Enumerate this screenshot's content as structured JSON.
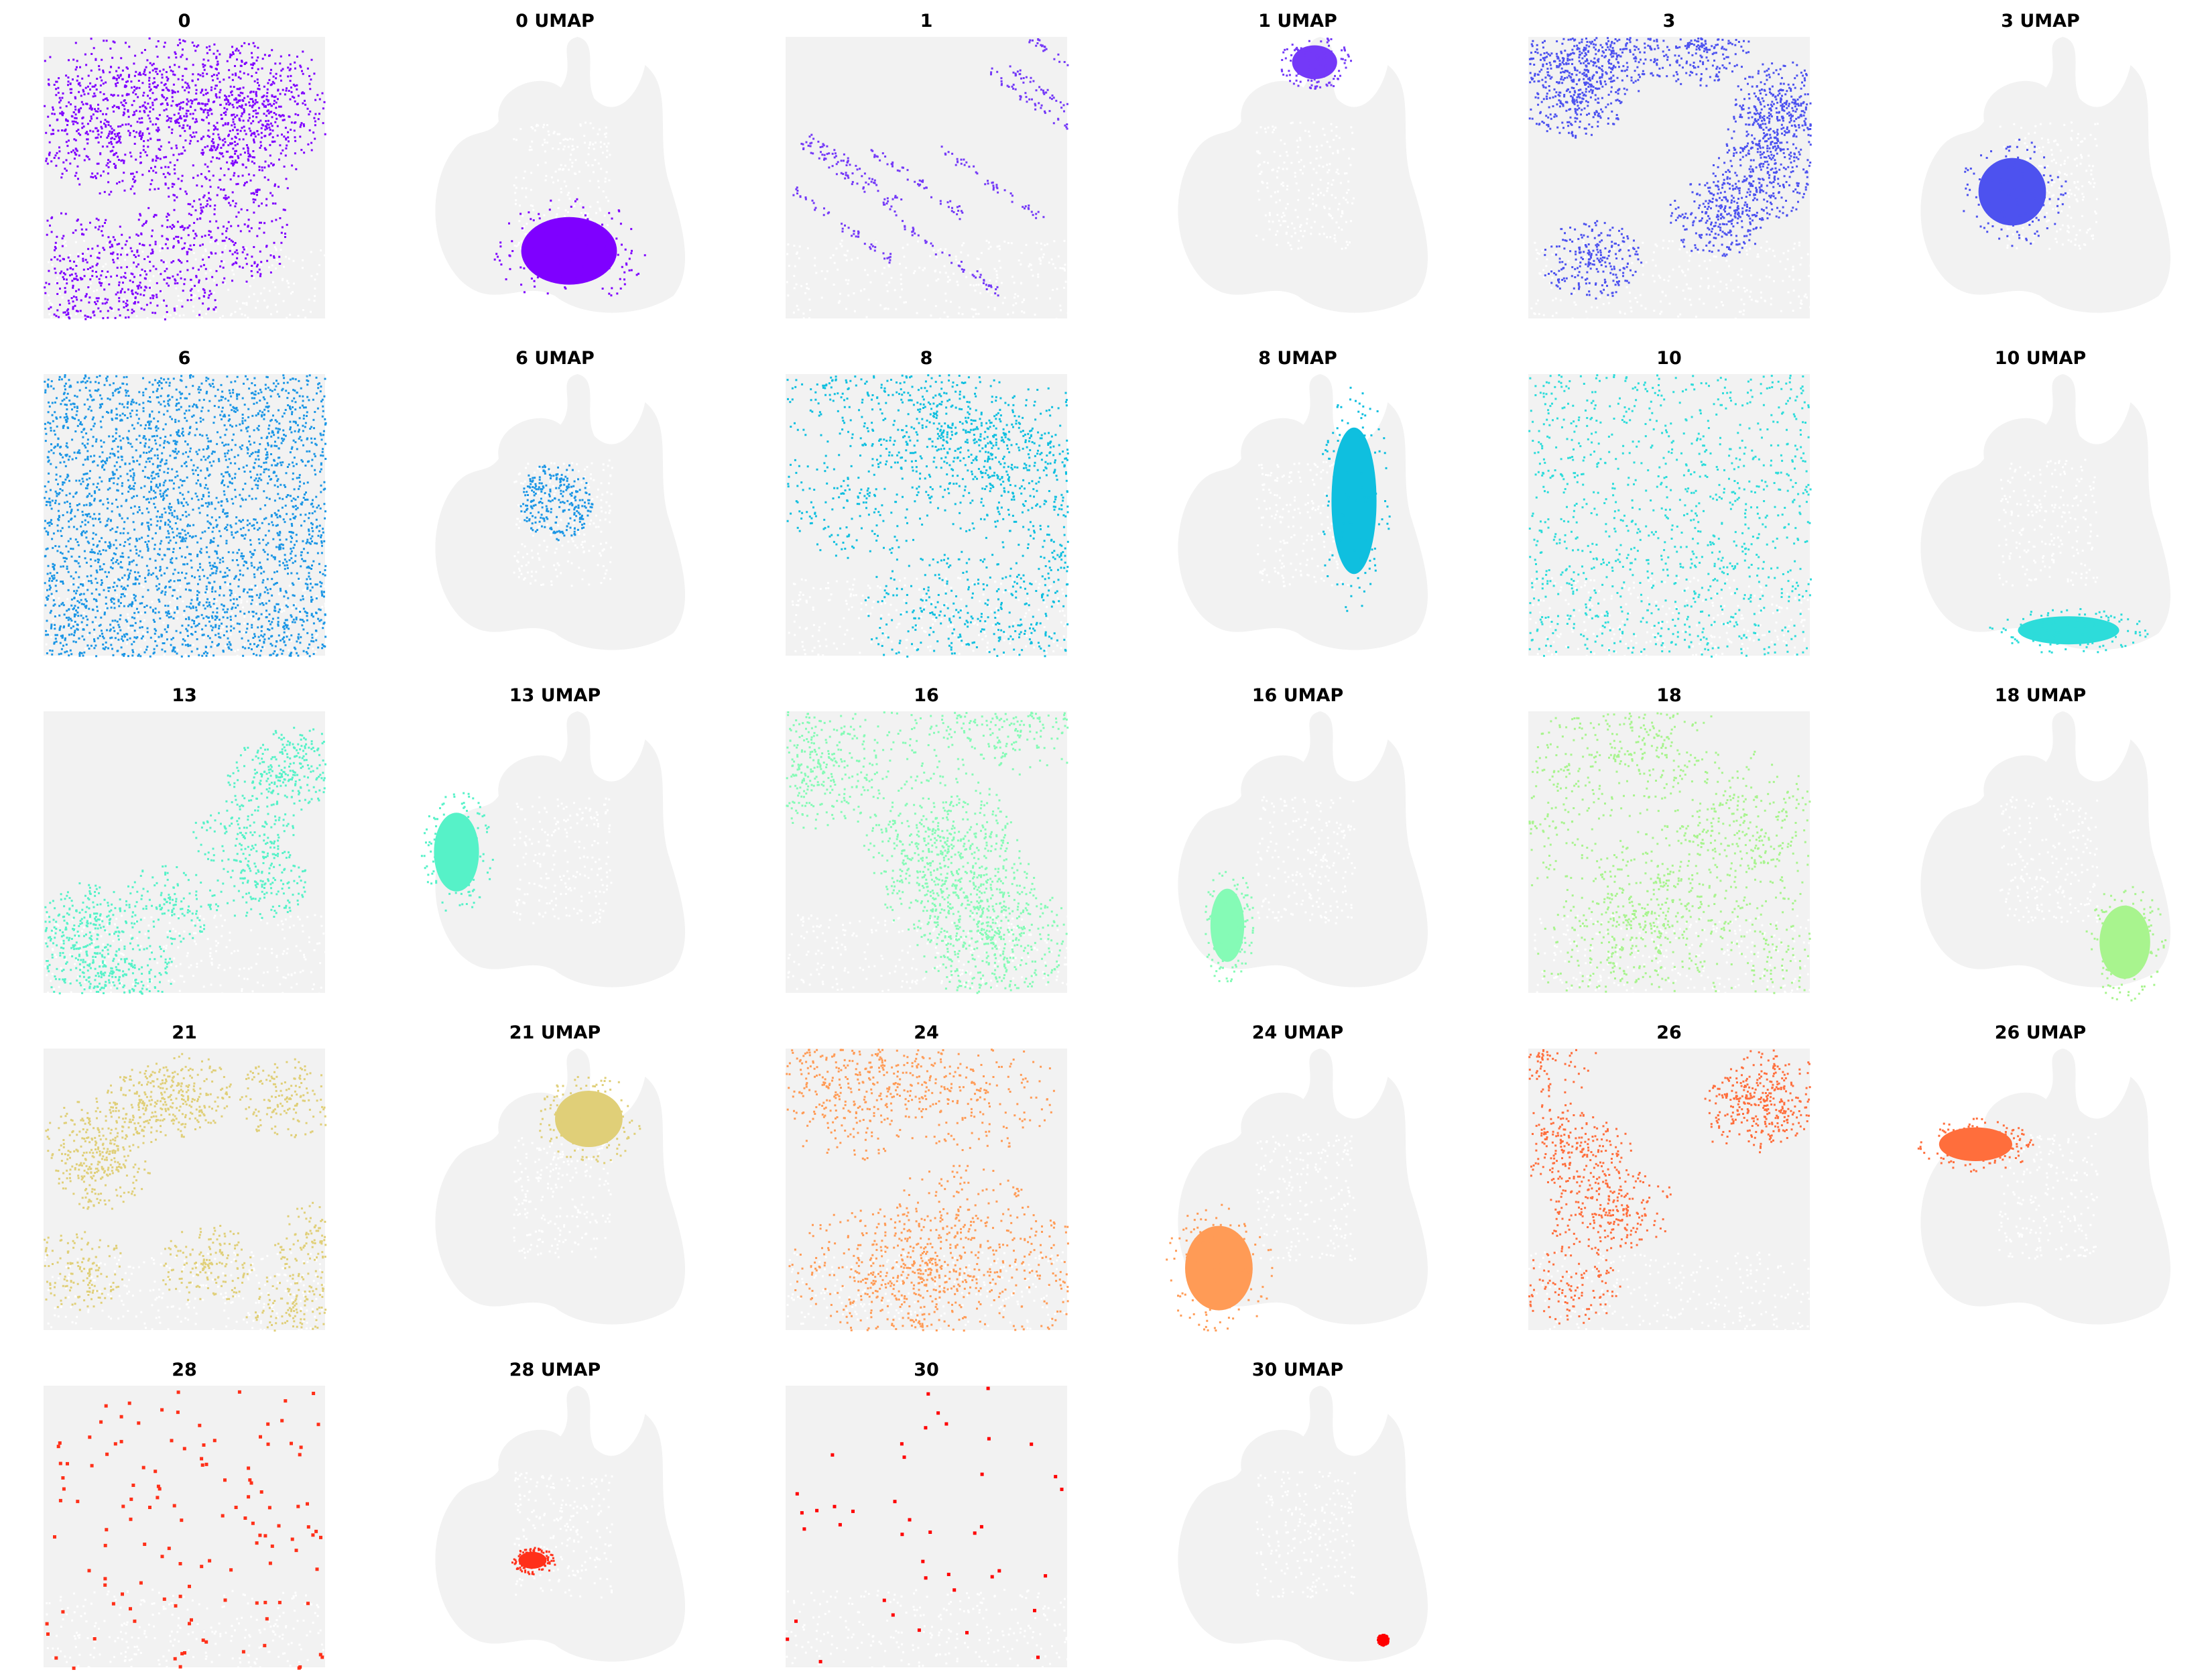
{
  "figure": {
    "background": "#ffffff",
    "unselected_color": "#f2f2f2"
  },
  "chart_data": {
    "type": "scatter",
    "description_kind": "cluster highlight grid: each cluster shown in spatial coordinates and in UMAP embedding",
    "panels": [
      {
        "cluster": "0",
        "spatial_title": "0",
        "umap_title": "0 UMAP",
        "color": "#7f00ff",
        "spatial_density": 0.55,
        "spatial_pattern": "network",
        "umap_region": {
          "cx": 0.55,
          "cy": 0.76,
          "rx": 0.17,
          "ry": 0.12,
          "shape": "blob"
        }
      },
      {
        "cluster": "1",
        "spatial_title": "1",
        "umap_title": "1 UMAP",
        "color": "#7439f8",
        "spatial_density": 0.1,
        "spatial_pattern": "streaks",
        "umap_region": {
          "cx": 0.56,
          "cy": 0.09,
          "rx": 0.08,
          "ry": 0.06,
          "shape": "hook"
        }
      },
      {
        "cluster": "3",
        "spatial_title": "3",
        "umap_title": "3 UMAP",
        "color": "#4d52ef",
        "spatial_density": 0.5,
        "spatial_pattern": "patches",
        "umap_region": {
          "cx": 0.4,
          "cy": 0.55,
          "rx": 0.12,
          "ry": 0.12,
          "shape": "triangle"
        }
      },
      {
        "cluster": "6",
        "spatial_title": "6",
        "umap_title": "6 UMAP",
        "color": "#1b96e5",
        "spatial_density": 0.7,
        "spatial_pattern": "uniform",
        "umap_region": {
          "cx": 0.5,
          "cy": 0.45,
          "rx": 0.13,
          "ry": 0.14,
          "shape": "dotted"
        }
      },
      {
        "cluster": "8",
        "spatial_title": "8",
        "umap_title": "8 UMAP",
        "color": "#0fbfdf",
        "spatial_density": 0.4,
        "spatial_pattern": "network",
        "umap_region": {
          "cx": 0.7,
          "cy": 0.45,
          "rx": 0.08,
          "ry": 0.26,
          "shape": "crescent"
        }
      },
      {
        "cluster": "10",
        "spatial_title": "10",
        "umap_title": "10 UMAP",
        "color": "#2ddcda",
        "spatial_density": 0.25,
        "spatial_pattern": "sparse",
        "umap_region": {
          "cx": 0.6,
          "cy": 0.91,
          "rx": 0.18,
          "ry": 0.05,
          "shape": "arc"
        }
      },
      {
        "cluster": "13",
        "spatial_title": "13",
        "umap_title": "13 UMAP",
        "color": "#56f2c8",
        "spatial_density": 0.3,
        "spatial_pattern": "patches",
        "umap_region": {
          "cx": 0.15,
          "cy": 0.5,
          "rx": 0.08,
          "ry": 0.14,
          "shape": "crescent"
        }
      },
      {
        "cluster": "16",
        "spatial_title": "16",
        "umap_title": "16 UMAP",
        "color": "#85fbb6",
        "spatial_density": 0.45,
        "spatial_pattern": "network",
        "umap_region": {
          "cx": 0.25,
          "cy": 0.76,
          "rx": 0.06,
          "ry": 0.13,
          "shape": "blob"
        }
      },
      {
        "cluster": "18",
        "spatial_title": "18",
        "umap_title": "18 UMAP",
        "color": "#a8f48e",
        "spatial_density": 0.35,
        "spatial_pattern": "network",
        "umap_region": {
          "cx": 0.8,
          "cy": 0.82,
          "rx": 0.09,
          "ry": 0.13,
          "shape": "blob"
        }
      },
      {
        "cluster": "21",
        "spatial_title": "21",
        "umap_title": "21 UMAP",
        "color": "#e0cf78",
        "spatial_density": 0.35,
        "spatial_pattern": "patches",
        "umap_region": {
          "cx": 0.62,
          "cy": 0.25,
          "rx": 0.12,
          "ry": 0.1,
          "shape": "hook"
        }
      },
      {
        "cluster": "24",
        "spatial_title": "24",
        "umap_title": "24 UMAP",
        "color": "#ff9b56",
        "spatial_density": 0.4,
        "spatial_pattern": "network",
        "umap_region": {
          "cx": 0.22,
          "cy": 0.78,
          "rx": 0.12,
          "ry": 0.15,
          "shape": "crescent"
        }
      },
      {
        "cluster": "26",
        "spatial_title": "26",
        "umap_title": "26 UMAP",
        "color": "#ff6e3c",
        "spatial_density": 0.25,
        "spatial_pattern": "patches",
        "umap_region": {
          "cx": 0.27,
          "cy": 0.34,
          "rx": 0.13,
          "ry": 0.06,
          "shape": "blob"
        }
      },
      {
        "cluster": "28",
        "spatial_title": "28",
        "umap_title": "28 UMAP",
        "color": "#ff3019",
        "spatial_density": 0.03,
        "spatial_pattern": "sparse",
        "umap_region": {
          "cx": 0.42,
          "cy": 0.62,
          "rx": 0.05,
          "ry": 0.03,
          "shape": "blob"
        }
      },
      {
        "cluster": "30",
        "spatial_title": "30",
        "umap_title": "30 UMAP",
        "color": "#ff0000",
        "spatial_density": 0.01,
        "spatial_pattern": "sparse",
        "umap_region": {
          "cx": 0.8,
          "cy": 0.9,
          "rx": 0.02,
          "ry": 0.02,
          "shape": "dotted"
        }
      }
    ],
    "grid": false,
    "axes_visible": false,
    "layout": "6 columns x 5 rows, spatial and UMAP panels alternating"
  }
}
